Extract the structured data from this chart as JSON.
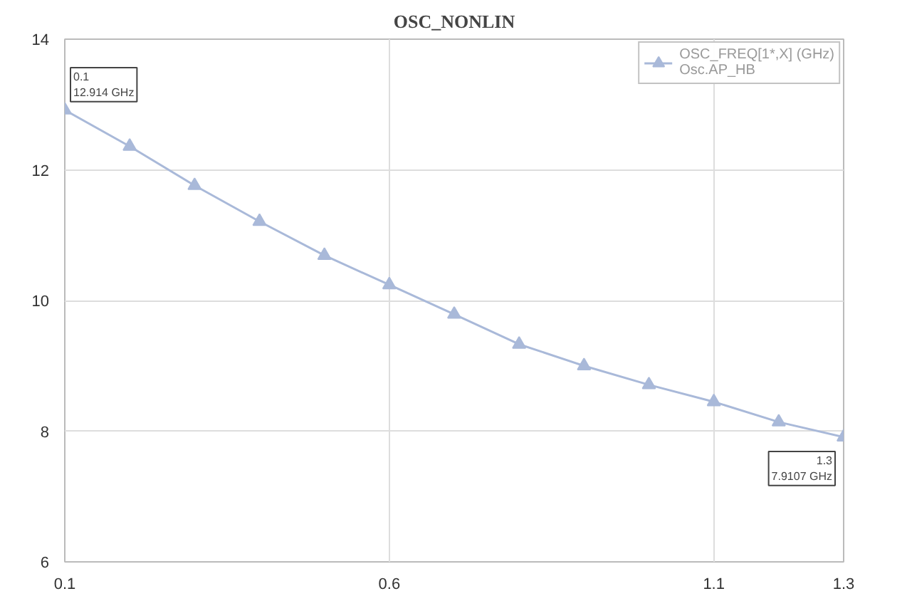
{
  "chart_data": {
    "type": "line",
    "title": "OSC_NONLIN",
    "x": [
      0.1,
      0.2,
      0.3,
      0.4,
      0.5,
      0.6,
      0.7,
      0.8,
      0.9,
      1.0,
      1.1,
      1.2,
      1.3
    ],
    "series": [
      {
        "name": "OSC_FREQ[1*,X] (GHz)\nOsc.AP_HB",
        "color": "#a9b9d9",
        "values": [
          12.914,
          12.36,
          11.76,
          11.21,
          10.69,
          10.24,
          9.79,
          9.33,
          9.0,
          8.71,
          8.45,
          8.14,
          7.9107
        ]
      }
    ],
    "xlim": [
      0.1,
      1.3
    ],
    "xticks": [
      0.1,
      0.6,
      1.1,
      1.3
    ],
    "ylim": [
      6,
      14
    ],
    "yticks": [
      6,
      8,
      10,
      12,
      14
    ],
    "grid": true,
    "legend": "top right",
    "marker": "triangle",
    "line_style": "solid",
    "annotations": [
      {
        "text": "0.1\n12.914 GHz",
        "x": 0.1,
        "y": 12.914
      },
      {
        "text": "1.3\n7.9107 GHz",
        "x": 1.3,
        "y": 7.9107
      }
    ]
  }
}
